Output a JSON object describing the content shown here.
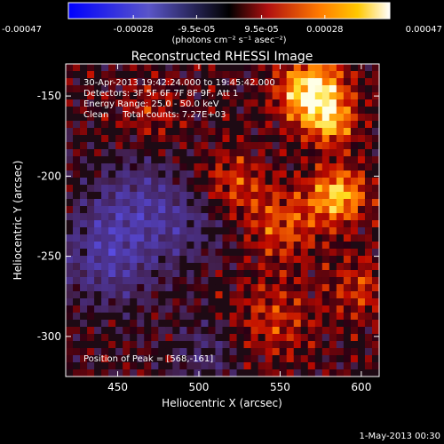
{
  "chart_data": {
    "type": "heatmap",
    "title": "Reconstructed RHESSI Image",
    "xlabel": "Heliocentric X (arcsec)",
    "ylabel": "Heliocentric Y (arcsec)",
    "xlim": [
      418,
      611
    ],
    "ylim": [
      -325,
      -130
    ],
    "x_ticks": [
      450,
      500,
      550,
      600
    ],
    "y_ticks": [
      -150,
      -200,
      -250,
      -300
    ],
    "colorbar": {
      "range": [
        -0.00047,
        0.00047
      ],
      "tick_values": [
        -0.00047,
        -0.00028,
        -9.5e-05,
        9.5e-05,
        0.00028,
        0.00047
      ],
      "tick_labels": [
        "-0.00047",
        "-0.00028",
        "-9.5e-05",
        "9.5e-05",
        "0.00028",
        "0.00047"
      ],
      "unit_label": "(photons cm⁻² s⁻¹ asec⁻²)"
    },
    "annotations": [
      "30-Apr-2013 19:42:24.000 to 19:45:42.000",
      "Detectors: 3F 5F 6F 7F 8F 9F, Att 1",
      "Energy Range: 25.0 - 50.0 keV",
      "Clean     Total counts: 7.27E+03"
    ],
    "peak_label": "Position of Peak = [568,-161]",
    "peak": [
      568,
      -161
    ],
    "sources": [
      {
        "x": 570,
        "y": -148,
        "amp": 1.05,
        "w": 14
      },
      {
        "x": 582,
        "y": -168,
        "amp": 0.55,
        "w": 10
      },
      {
        "x": 586,
        "y": -212,
        "amp": 0.8,
        "w": 12
      },
      {
        "x": 552,
        "y": -230,
        "amp": 0.45,
        "w": 16
      },
      {
        "x": 520,
        "y": -205,
        "amp": 0.4,
        "w": 14
      },
      {
        "x": 545,
        "y": -290,
        "amp": 0.35,
        "w": 18
      },
      {
        "x": 600,
        "y": -270,
        "amp": 0.35,
        "w": 14
      },
      {
        "x": 470,
        "y": -160,
        "amp": 0.25,
        "w": 14
      },
      {
        "x": 445,
        "y": -250,
        "amp": -0.55,
        "w": 22
      },
      {
        "x": 462,
        "y": -215,
        "amp": -0.4,
        "w": 20
      },
      {
        "x": 495,
        "y": -230,
        "amp": -0.3,
        "w": 18
      },
      {
        "x": 505,
        "y": -310,
        "amp": -0.3,
        "w": 16
      }
    ]
  },
  "footer": {
    "date": "1-May-2013 00:30"
  }
}
